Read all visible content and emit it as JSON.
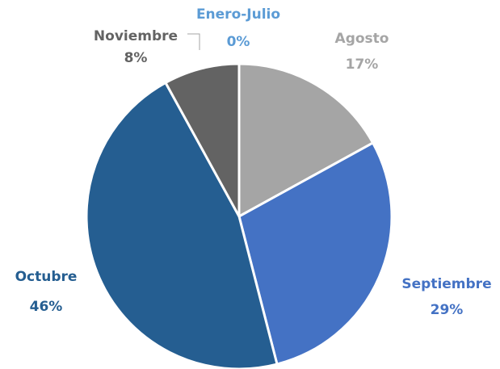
{
  "chart_data": {
    "type": "pie",
    "categories": [
      "Enero-Julio",
      "Agosto",
      "Septiembre",
      "Octubre",
      "Noviembre"
    ],
    "values": [
      0,
      17,
      29,
      46,
      8
    ],
    "value_labels": [
      "0%",
      "17%",
      "29%",
      "46%",
      "8%"
    ],
    "colors": [
      "#5b9bd5",
      "#a5a5a5",
      "#4472c4",
      "#255e91",
      "#636363"
    ]
  }
}
